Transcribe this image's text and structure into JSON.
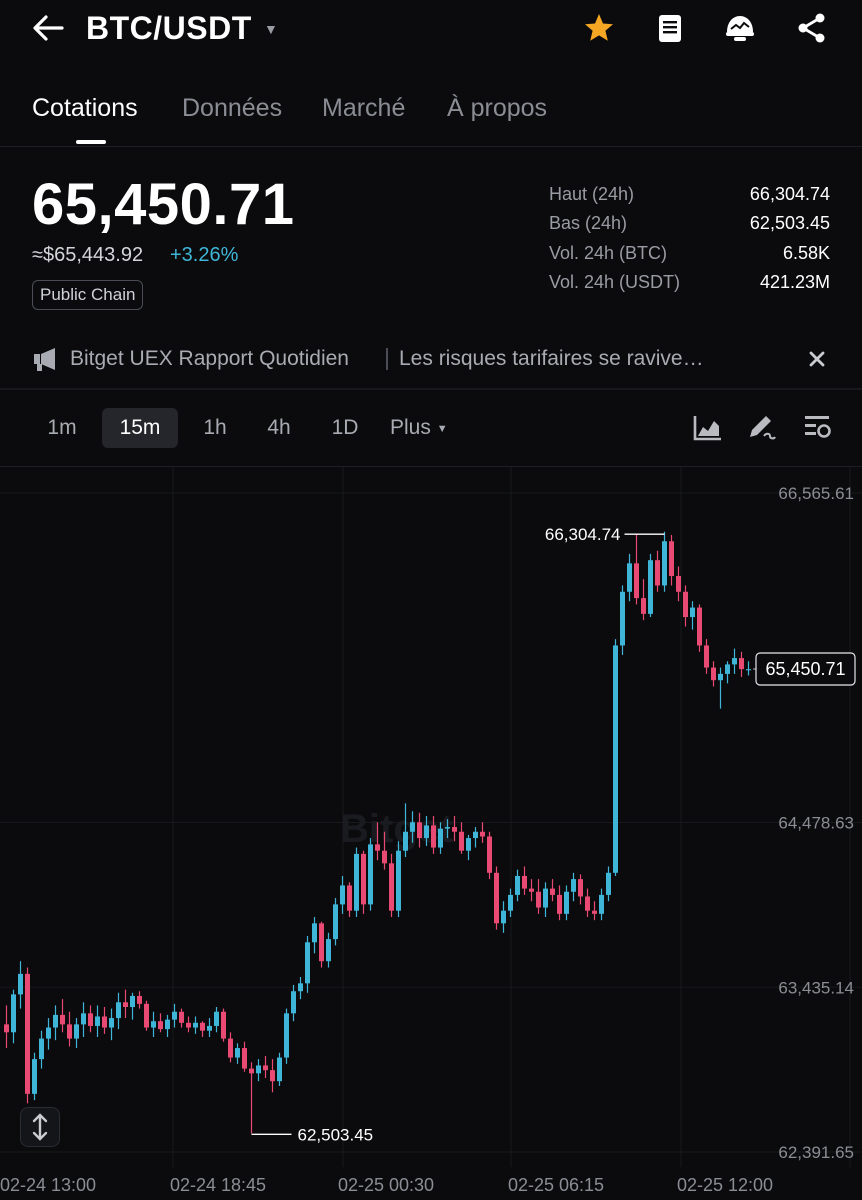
{
  "header": {
    "back_icon": "arrow-left-icon",
    "pair": "BTC/USDT",
    "icons": [
      "star-icon",
      "document-icon",
      "bot-icon",
      "share-icon"
    ],
    "star_color": "#f5a623"
  },
  "tabs": [
    {
      "label": "Cotations",
      "active": true
    },
    {
      "label": "Données",
      "active": false
    },
    {
      "label": "Marché",
      "active": false
    },
    {
      "label": "À propos",
      "active": false
    }
  ],
  "price": {
    "last": "65,450.71",
    "usd_equiv": "≈$65,443.92",
    "change": "+3.26%",
    "badge": "Public Chain"
  },
  "stats": [
    {
      "label": "Haut (24h)",
      "value": "66,304.74"
    },
    {
      "label": "Bas (24h)",
      "value": "62,503.45"
    },
    {
      "label": "Vol. 24h (BTC)",
      "value": "6.58K"
    },
    {
      "label": "Vol. 24h (USDT)",
      "value": "421.23M"
    }
  ],
  "news": {
    "icon": "megaphone-icon",
    "source": "Bitget UEX Rapport Quotidien",
    "headline": "Les risques tarifaires se ravive…",
    "close_icon": "close-icon"
  },
  "intervals": [
    {
      "label": "1m",
      "active": false
    },
    {
      "label": "15m",
      "active": true
    },
    {
      "label": "1h",
      "active": false
    },
    {
      "label": "4h",
      "active": false
    },
    {
      "label": "1D",
      "active": false
    },
    {
      "label": "Plus",
      "active": false
    }
  ],
  "toolbar_icons": [
    "chart-type-icon",
    "draw-tool-icon",
    "indicator-settings-icon"
  ],
  "colors": {
    "up": "#3fb6d8",
    "down": "#e84a73",
    "accent": "#3fb6d8"
  },
  "chart_data": {
    "type": "candlestick",
    "interval": "15m",
    "y_ticks": [
      "66,565.61",
      "64,478.63",
      "63,435.14",
      "62,391.65"
    ],
    "x_ticks": [
      "02-24 13:00",
      "02-24 18:45",
      "02-25 00:30",
      "02-25 06:15",
      "02-25 12:00"
    ],
    "high_marker": "66,304.74",
    "low_marker": "62,503.45",
    "last_price": "65,450.71",
    "watermark": "Bitget",
    "candles": [
      [
        63200,
        63320,
        63050,
        63150
      ],
      [
        63150,
        63420,
        63080,
        63390
      ],
      [
        63390,
        63600,
        63300,
        63520
      ],
      [
        63520,
        63560,
        62700,
        62760
      ],
      [
        62760,
        63020,
        62720,
        62980
      ],
      [
        62980,
        63160,
        62920,
        63110
      ],
      [
        63110,
        63240,
        63040,
        63180
      ],
      [
        63180,
        63320,
        63100,
        63260
      ],
      [
        63260,
        63360,
        63150,
        63200
      ],
      [
        63200,
        63280,
        63060,
        63110
      ],
      [
        63110,
        63240,
        63050,
        63200
      ],
      [
        63200,
        63340,
        63120,
        63270
      ],
      [
        63270,
        63320,
        63150,
        63190
      ],
      [
        63190,
        63320,
        63120,
        63250
      ],
      [
        63250,
        63310,
        63140,
        63180
      ],
      [
        63180,
        63300,
        63100,
        63240
      ],
      [
        63240,
        63400,
        63170,
        63340
      ],
      [
        63340,
        63420,
        63240,
        63310
      ],
      [
        63310,
        63400,
        63230,
        63380
      ],
      [
        63380,
        63410,
        63300,
        63330
      ],
      [
        63330,
        63350,
        63160,
        63180
      ],
      [
        63180,
        63280,
        63120,
        63220
      ],
      [
        63220,
        63270,
        63150,
        63170
      ],
      [
        63170,
        63260,
        63120,
        63230
      ],
      [
        63230,
        63330,
        63180,
        63280
      ],
      [
        63280,
        63300,
        63180,
        63210
      ],
      [
        63210,
        63250,
        63150,
        63180
      ],
      [
        63180,
        63250,
        63140,
        63210
      ],
      [
        63210,
        63220,
        63120,
        63160
      ],
      [
        63160,
        63240,
        63120,
        63190
      ],
      [
        63190,
        63310,
        63150,
        63280
      ],
      [
        63280,
        63300,
        63090,
        63110
      ],
      [
        63110,
        63150,
        62960,
        62990
      ],
      [
        62990,
        63080,
        62950,
        63050
      ],
      [
        63050,
        63090,
        62900,
        62920
      ],
      [
        62920,
        62960,
        62510,
        62890
      ],
      [
        62890,
        62980,
        62840,
        62940
      ],
      [
        62940,
        63000,
        62860,
        62910
      ],
      [
        62910,
        62980,
        62770,
        62840
      ],
      [
        62840,
        63020,
        62810,
        62990
      ],
      [
        62990,
        63300,
        62950,
        63270
      ],
      [
        63270,
        63450,
        63220,
        63410
      ],
      [
        63410,
        63500,
        63360,
        63460
      ],
      [
        63460,
        63760,
        63400,
        63720
      ],
      [
        63720,
        63880,
        63650,
        63840
      ],
      [
        63840,
        63850,
        63560,
        63600
      ],
      [
        63600,
        63780,
        63560,
        63740
      ],
      [
        63740,
        64000,
        63700,
        63960
      ],
      [
        63960,
        64140,
        63900,
        64080
      ],
      [
        64080,
        64100,
        63880,
        63920
      ],
      [
        63920,
        64320,
        63880,
        64280
      ],
      [
        64280,
        64300,
        63900,
        63960
      ],
      [
        63960,
        64380,
        63920,
        64340
      ],
      [
        64340,
        64480,
        64240,
        64300
      ],
      [
        64300,
        64420,
        64180,
        64220
      ],
      [
        64220,
        64280,
        63880,
        63920
      ],
      [
        63920,
        64360,
        63880,
        64300
      ],
      [
        64300,
        64600,
        64260,
        64420
      ],
      [
        64420,
        64550,
        64350,
        64480
      ],
      [
        64480,
        64540,
        64320,
        64380
      ],
      [
        64380,
        64520,
        64330,
        64460
      ],
      [
        64460,
        64520,
        64280,
        64320
      ],
      [
        64320,
        64480,
        64280,
        64440
      ],
      [
        64440,
        64500,
        64380,
        64450
      ],
      [
        64450,
        64520,
        64360,
        64420
      ],
      [
        64420,
        64480,
        64280,
        64300
      ],
      [
        64300,
        64400,
        64240,
        64380
      ],
      [
        64380,
        64450,
        64320,
        64420
      ],
      [
        64420,
        64480,
        64350,
        64390
      ],
      [
        64390,
        64420,
        64120,
        64160
      ],
      [
        64160,
        64200,
        63800,
        63840
      ],
      [
        63840,
        63980,
        63780,
        63920
      ],
      [
        63920,
        64060,
        63880,
        64020
      ],
      [
        64020,
        64180,
        63980,
        64140
      ],
      [
        64140,
        64200,
        64020,
        64060
      ],
      [
        64060,
        64120,
        63980,
        64040
      ],
      [
        64040,
        64120,
        63900,
        63940
      ],
      [
        63940,
        64100,
        63880,
        64060
      ],
      [
        64060,
        64120,
        63980,
        64020
      ],
      [
        64020,
        64080,
        63860,
        63900
      ],
      [
        63900,
        64080,
        63860,
        64040
      ],
      [
        64040,
        64160,
        63980,
        64120
      ],
      [
        64120,
        64150,
        63960,
        64010
      ],
      [
        64010,
        64060,
        63880,
        63920
      ],
      [
        63920,
        63980,
        63860,
        63900
      ],
      [
        63900,
        64060,
        63860,
        64020
      ],
      [
        64020,
        64200,
        63980,
        64160
      ],
      [
        64160,
        65640,
        64140,
        65600
      ],
      [
        65600,
        65980,
        65540,
        65940
      ],
      [
        65940,
        66180,
        65880,
        66120
      ],
      [
        66120,
        66304,
        65860,
        65900
      ],
      [
        65900,
        66020,
        65760,
        65800
      ],
      [
        65800,
        66180,
        65780,
        66140
      ],
      [
        66140,
        66200,
        65940,
        65980
      ],
      [
        65980,
        66320,
        65940,
        66260
      ],
      [
        66260,
        66300,
        65980,
        66040
      ],
      [
        66040,
        66100,
        65880,
        65940
      ],
      [
        65940,
        65980,
        65720,
        65780
      ],
      [
        65780,
        65880,
        65700,
        65840
      ],
      [
        65840,
        65860,
        65560,
        65600
      ],
      [
        65600,
        65640,
        65420,
        65460
      ],
      [
        65460,
        65500,
        65340,
        65380
      ],
      [
        65380,
        65460,
        65200,
        65420
      ],
      [
        65420,
        65500,
        65360,
        65480
      ],
      [
        65480,
        65580,
        65420,
        65520
      ],
      [
        65520,
        65560,
        65400,
        65450
      ],
      [
        65450,
        65500,
        65410,
        65450
      ]
    ]
  }
}
